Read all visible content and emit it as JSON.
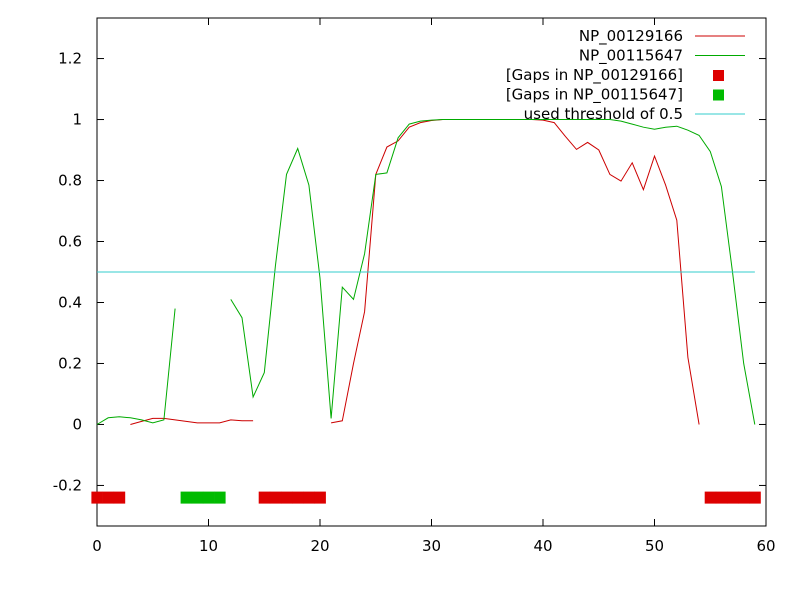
{
  "chart_data": {
    "type": "line",
    "title": "",
    "xlabel": "",
    "ylabel": "",
    "xlim": [
      0,
      60
    ],
    "ylim": [
      -0.333,
      1.333
    ],
    "xticks": [
      0,
      10,
      20,
      30,
      40,
      50,
      60
    ],
    "xtick_labels": [
      "0",
      "10",
      "20",
      "30",
      "40",
      "50",
      "60"
    ],
    "yticks": [
      -0.2,
      0,
      0.2,
      0.4,
      0.6,
      0.8,
      1,
      1.2
    ],
    "ytick_labels": [
      "-0.2",
      "0",
      "0.2",
      "0.4",
      "0.6",
      "0.8",
      "1",
      "1.2"
    ],
    "grid": false,
    "legend_position": "top-right",
    "series": [
      {
        "name": "NP_00129166",
        "color": "#cc0000",
        "kind": "line",
        "segments": [
          [
            [
              3,
              0.0
            ],
            [
              4,
              0.01
            ],
            [
              5,
              0.02
            ],
            [
              6,
              0.02
            ],
            [
              7,
              0.015
            ],
            [
              8,
              0.01
            ],
            [
              9,
              0.005
            ],
            [
              10,
              0.005
            ],
            [
              11,
              0.005
            ],
            [
              12,
              0.015
            ],
            [
              13,
              0.012
            ],
            [
              14,
              0.012
            ]
          ],
          [
            [
              21,
              0.005
            ],
            [
              22,
              0.012
            ],
            [
              23,
              0.2
            ],
            [
              24,
              0.37
            ],
            [
              25,
              0.82
            ],
            [
              26,
              0.91
            ],
            [
              27,
              0.93
            ],
            [
              28,
              0.975
            ],
            [
              29,
              0.99
            ],
            [
              30,
              0.997
            ],
            [
              31,
              1.0
            ],
            [
              32,
              1.0
            ],
            [
              33,
              1.0
            ],
            [
              34,
              1.0
            ],
            [
              35,
              1.0
            ],
            [
              36,
              1.0
            ],
            [
              37,
              1.0
            ],
            [
              38,
              1.0
            ],
            [
              39,
              1.0
            ],
            [
              40,
              0.998
            ],
            [
              41,
              0.99
            ],
            [
              42,
              0.945
            ],
            [
              43,
              0.902
            ],
            [
              44,
              0.925
            ],
            [
              45,
              0.9
            ],
            [
              46,
              0.82
            ],
            [
              47,
              0.798
            ],
            [
              48,
              0.858
            ],
            [
              49,
              0.77
            ],
            [
              50,
              0.88
            ],
            [
              51,
              0.785
            ],
            [
              52,
              0.67
            ],
            [
              53,
              0.22
            ],
            [
              54,
              0.0
            ]
          ]
        ]
      },
      {
        "name": "NP_00115647",
        "color": "#00aa00",
        "kind": "line",
        "segments": [
          [
            [
              0,
              0.0
            ],
            [
              1,
              0.022
            ],
            [
              2,
              0.025
            ],
            [
              3,
              0.022
            ],
            [
              4,
              0.015
            ],
            [
              5,
              0.005
            ],
            [
              6,
              0.015
            ],
            [
              7,
              0.38
            ]
          ],
          [
            [
              12,
              0.41
            ],
            [
              13,
              0.35
            ],
            [
              14,
              0.09
            ],
            [
              15,
              0.17
            ],
            [
              16,
              0.52
            ],
            [
              17,
              0.82
            ],
            [
              18,
              0.905
            ],
            [
              19,
              0.785
            ],
            [
              20,
              0.48
            ],
            [
              21,
              0.02
            ],
            [
              22,
              0.45
            ],
            [
              23,
              0.41
            ],
            [
              24,
              0.56
            ],
            [
              25,
              0.82
            ],
            [
              26,
              0.825
            ],
            [
              27,
              0.94
            ],
            [
              28,
              0.985
            ],
            [
              29,
              0.995
            ],
            [
              30,
              0.998
            ],
            [
              31,
              1.0
            ],
            [
              32,
              1.0
            ],
            [
              33,
              1.0
            ],
            [
              34,
              1.0
            ],
            [
              35,
              1.0
            ],
            [
              36,
              1.0
            ],
            [
              37,
              1.0
            ],
            [
              38,
              1.0
            ],
            [
              39,
              1.0
            ],
            [
              40,
              1.0
            ],
            [
              41,
              1.0
            ],
            [
              42,
              1.0
            ],
            [
              43,
              1.0
            ],
            [
              44,
              1.0
            ],
            [
              45,
              1.0
            ],
            [
              46,
              1.0
            ],
            [
              47,
              0.995
            ],
            [
              48,
              0.985
            ],
            [
              49,
              0.975
            ],
            [
              50,
              0.968
            ],
            [
              51,
              0.975
            ],
            [
              52,
              0.978
            ],
            [
              53,
              0.965
            ],
            [
              54,
              0.948
            ],
            [
              55,
              0.895
            ],
            [
              56,
              0.78
            ],
            [
              57,
              0.5
            ],
            [
              58,
              0.2
            ],
            [
              59,
              0.0
            ]
          ]
        ]
      },
      {
        "name": "[Gaps in NP_00129166]",
        "color": "#dd0000",
        "kind": "gaps",
        "y": -0.24,
        "x": [
          0,
          1,
          2,
          15,
          16,
          17,
          18,
          19,
          20,
          55,
          56,
          57,
          58,
          59
        ]
      },
      {
        "name": "[Gaps in NP_00115647]",
        "color": "#00bb00",
        "kind": "gaps",
        "y": -0.24,
        "x": [
          8,
          9,
          10,
          11
        ]
      },
      {
        "name": "used threshold of 0.5",
        "color": "#33cccc",
        "kind": "hline",
        "y": 0.5,
        "x": [
          0,
          59
        ]
      }
    ]
  }
}
